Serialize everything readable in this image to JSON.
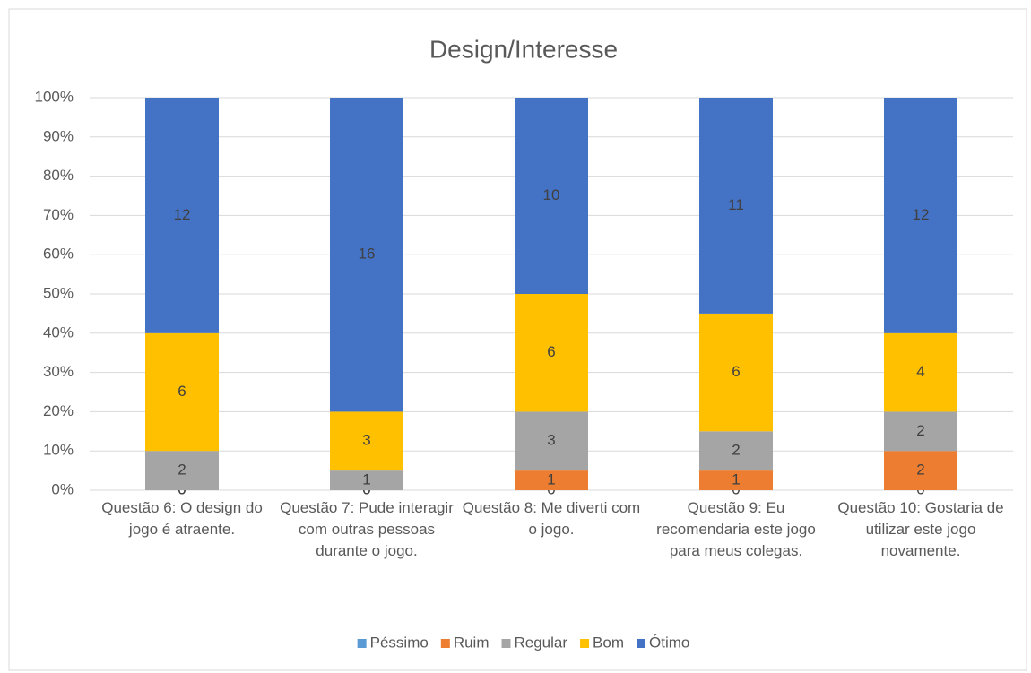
{
  "chart_data": {
    "type": "bar",
    "stacked": "percent",
    "title": "Design/Interesse",
    "categories": [
      "Questão 6: O design do jogo é atraente.",
      "Questão 7: Pude interagir com outras pessoas durante o jogo.",
      "Questão 8: Me diverti com o jogo.",
      "Questão 9: Eu recomendaria este jogo para meus colegas.",
      "Questão 10: Gostaria de utilizar este jogo novamente."
    ],
    "series": [
      {
        "name": "Péssimo",
        "color": "#5b9bd5",
        "values": [
          0,
          0,
          0,
          0,
          0
        ]
      },
      {
        "name": "Ruim",
        "color": "#ed7d31",
        "values": [
          0,
          0,
          1,
          1,
          2
        ]
      },
      {
        "name": "Regular",
        "color": "#a5a5a5",
        "values": [
          2,
          1,
          3,
          2,
          2
        ]
      },
      {
        "name": "Bom",
        "color": "#ffc000",
        "values": [
          6,
          3,
          6,
          6,
          4
        ]
      },
      {
        "name": "Ótimo",
        "color": "#4472c4",
        "values": [
          12,
          16,
          10,
          11,
          12
        ]
      }
    ],
    "ylim": [
      0,
      100
    ],
    "yticks": [
      {
        "value": 0,
        "label": "0%"
      },
      {
        "value": 10,
        "label": "10%"
      },
      {
        "value": 20,
        "label": "20%"
      },
      {
        "value": 30,
        "label": "30%"
      },
      {
        "value": 40,
        "label": "40%"
      },
      {
        "value": 50,
        "label": "50%"
      },
      {
        "value": 60,
        "label": "60%"
      },
      {
        "value": 70,
        "label": "70%"
      },
      {
        "value": 80,
        "label": "80%"
      },
      {
        "value": 90,
        "label": "90%"
      },
      {
        "value": 100,
        "label": "100%"
      }
    ],
    "grid": true,
    "legend": "bottom"
  }
}
